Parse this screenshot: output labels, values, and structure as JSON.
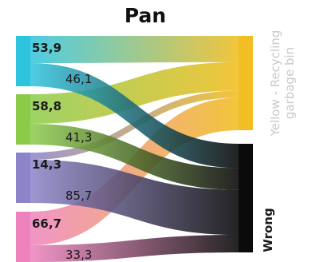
{
  "chart_data": {
    "type": "sankey",
    "title": "Pan",
    "sources": [
      {
        "value_label": "53,9",
        "color": "#2ec4de"
      },
      {
        "value_label": "58,8",
        "color": "#8ccb4a"
      },
      {
        "value_label": "14,3",
        "color": "#8c83c9"
      },
      {
        "value_label": "66,7",
        "color": "#ee82bd"
      }
    ],
    "targets": [
      {
        "label_lines": [
          "Yellow - Recycling",
          "garbage bin"
        ],
        "color": "#f1bf25"
      },
      {
        "label_lines": [
          "Wrong"
        ],
        "color": "#0b0b0b"
      }
    ],
    "flows": [
      {
        "source": 0,
        "target": 0,
        "value": 53.9,
        "label": ""
      },
      {
        "source": 0,
        "target": 1,
        "value": 46.1,
        "label": "46,1"
      },
      {
        "source": 1,
        "target": 0,
        "value": 58.8,
        "label": ""
      },
      {
        "source": 1,
        "target": 1,
        "value": 41.3,
        "label": "41,3"
      },
      {
        "source": 2,
        "target": 0,
        "value": 14.3,
        "label": ""
      },
      {
        "source": 2,
        "target": 1,
        "value": 85.7,
        "label": "85,7"
      },
      {
        "source": 3,
        "target": 0,
        "value": 66.7,
        "label": ""
      },
      {
        "source": 3,
        "target": 1,
        "value": 33.3,
        "label": "33,3"
      }
    ]
  }
}
